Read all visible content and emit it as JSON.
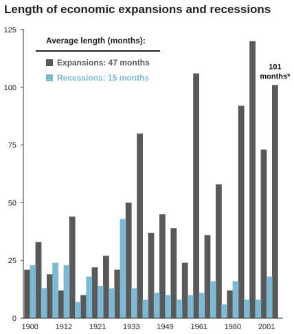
{
  "chart_data": {
    "type": "bar",
    "title": "Length of economic expansions and recessions",
    "xlabel": "",
    "ylabel": "",
    "ylim": [
      0,
      125
    ],
    "yticks": [
      0,
      25,
      50,
      75,
      100,
      125
    ],
    "grid": false,
    "x_tick_labels": [
      "1900",
      "1912",
      "1921",
      "1933",
      "1949",
      "1961",
      "1980",
      "2001"
    ],
    "x_tick_positions": [
      0,
      3,
      6,
      9,
      12,
      15,
      18,
      21
    ],
    "legend": {
      "title": "Average length (months):",
      "placement": "top-left"
    },
    "series": [
      {
        "name": "Expansions: 47 months",
        "color": "#595959",
        "values": [
          21,
          33,
          19,
          12,
          44,
          10,
          22,
          27,
          21,
          50,
          80,
          37,
          45,
          39,
          24,
          106,
          36,
          58,
          12,
          92,
          120,
          73,
          101
        ]
      },
      {
        "name": "Recessions: 15 months",
        "color": "#7eb8d2",
        "values": [
          23,
          13,
          24,
          23,
          7,
          18,
          14,
          13,
          43,
          13,
          8,
          11,
          10,
          8,
          10,
          11,
          16,
          6,
          16,
          8,
          8,
          18
        ]
      }
    ],
    "annotations": [
      {
        "text_lines": [
          "101",
          "months*"
        ],
        "series_index": 0,
        "point_index": 22
      }
    ]
  }
}
